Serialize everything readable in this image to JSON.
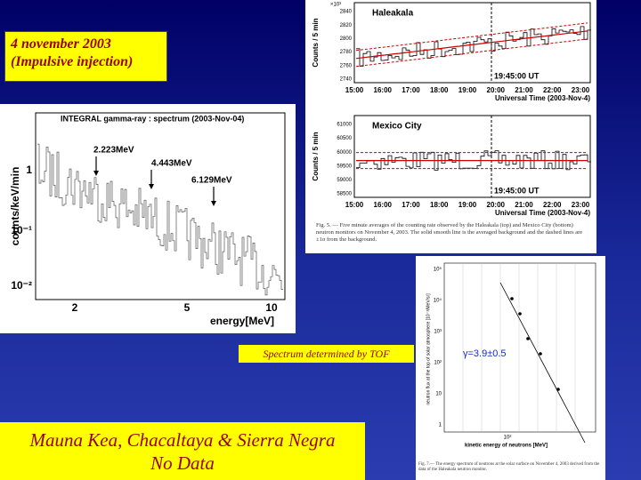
{
  "title_box": {
    "line1": "4 november 2003",
    "line2": "(Impulsive injection)"
  },
  "haleakala_plot": {
    "exponent": "×10³",
    "y_label": "Counts / 5 min",
    "station": "Haleakala",
    "yticks": [
      "2840",
      "2820",
      "2800",
      "2780",
      "2760",
      "2740"
    ],
    "marker": "19:45:00 UT",
    "xticks": [
      "15:00",
      "16:00",
      "17:00",
      "18:00",
      "19:00",
      "20:00",
      "21:00",
      "22:00",
      "23:00"
    ],
    "x_label": "Universal Time (2003-Nov-4)"
  },
  "mexico_plot": {
    "y_label": "Counts / 5 min",
    "station": "Mexico City",
    "yticks": [
      "61000",
      "60500",
      "60000",
      "59500",
      "59000",
      "58500"
    ],
    "marker": "19:45:00 UT",
    "xticks": [
      "15:00",
      "16:00",
      "17:00",
      "18:00",
      "19:00",
      "20:00",
      "21:00",
      "22:00",
      "23:00"
    ],
    "x_label": "Universal Time (2003-Nov-4)"
  },
  "fig5_caption": "Fig. 5. — Five minute averages of the counting rate observed by the Haleakala (top) and Mexico City (bottom) neutron monitors on November 4, 2003. The solid smooth line is the averaged background and the dashed lines are ±1σ from the background.",
  "integral_plot": {
    "title": "INTEGRAL gamma-ray : spectrum (2003-Nov-04)",
    "y_label": "counts/keV/min",
    "lines": [
      "2.223MeV",
      "4.443MeV",
      "6.129MeV"
    ],
    "yticks": [
      "1",
      "10⁻¹",
      "10⁻²"
    ],
    "xticks": [
      "2",
      "5",
      "10"
    ],
    "x_label": "energy[MeV]"
  },
  "tof_label": "Spectrum determined by TOF",
  "neutron_plot": {
    "annotation": "γ=3.9±0.5",
    "y_label": "neutron flux at the top of solar atmosphere [10⁻³/MeV/sr]",
    "yticks": [
      "10⁵",
      "10⁴",
      "10³",
      "10²",
      "10",
      "1"
    ],
    "xtick": "10²",
    "x_label": "kinetic energy of neutrons [MeV]",
    "caption": "Fig. 7.— The energy spectrum of neutrons at the solar surface on November 4, 2003 derived from the data of the Haleakala neutron monitor."
  },
  "no_data_box": {
    "line1": "Mauna Kea, Chacaltaya & Sierra Negra",
    "line2": "No Data"
  }
}
